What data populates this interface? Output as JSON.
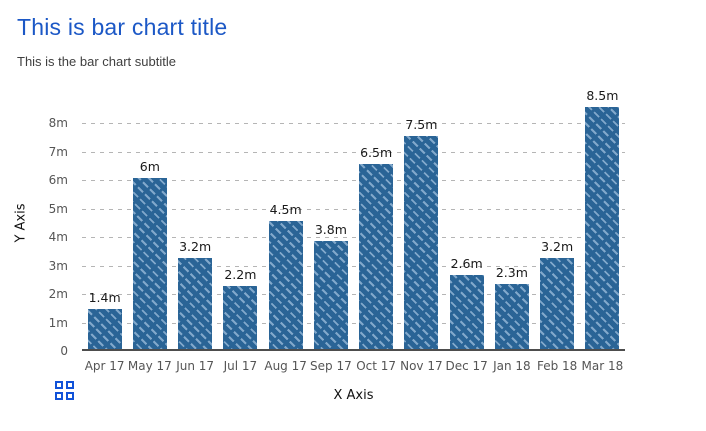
{
  "header": {
    "title": "This is bar chart title",
    "subtitle": "This is the bar chart subtitle"
  },
  "chart_data": {
    "type": "bar",
    "title": "This is bar chart title",
    "subtitle": "This is the bar chart subtitle",
    "xlabel": "X Axis",
    "ylabel": "Y Axis",
    "categories": [
      "Apr 17",
      "May 17",
      "Jun 17",
      "Jul 17",
      "Aug 17",
      "Sep 17",
      "Oct 17",
      "Nov 17",
      "Dec 17",
      "Jan 18",
      "Feb 18",
      "Mar 18"
    ],
    "values": [
      1.4,
      6,
      3.2,
      2.2,
      4.5,
      3.8,
      6.5,
      7.5,
      2.6,
      2.3,
      3.2,
      8.5
    ],
    "value_labels": [
      "1.4m",
      "6m",
      "3.2m",
      "2.2m",
      "4.5m",
      "3.8m",
      "6.5m",
      "7.5m",
      "2.6m",
      "2.3m",
      "3.2m",
      "8.5m"
    ],
    "unit": "m",
    "ytick_labels": [
      "0",
      "1m",
      "2m",
      "3m",
      "4m",
      "5m",
      "6m",
      "7m",
      "8m"
    ],
    "ylim": [
      0,
      9
    ],
    "grid": "horizontal-dashed",
    "legend_position": "none",
    "bar_style": "diagonal-striped"
  },
  "colors": {
    "title": "#1c58c6",
    "subtitle": "#404040",
    "bar_fill": "#2a6496",
    "bar_stripe": "#86acce",
    "gridline": "#b5b5b5",
    "axis_line": "#4d4d4d",
    "axis_text": "#555555",
    "value_label": "#1a1a1a",
    "logo_icon": "#1152d9"
  },
  "logo": {
    "icon": "grid-2x2-icon"
  }
}
